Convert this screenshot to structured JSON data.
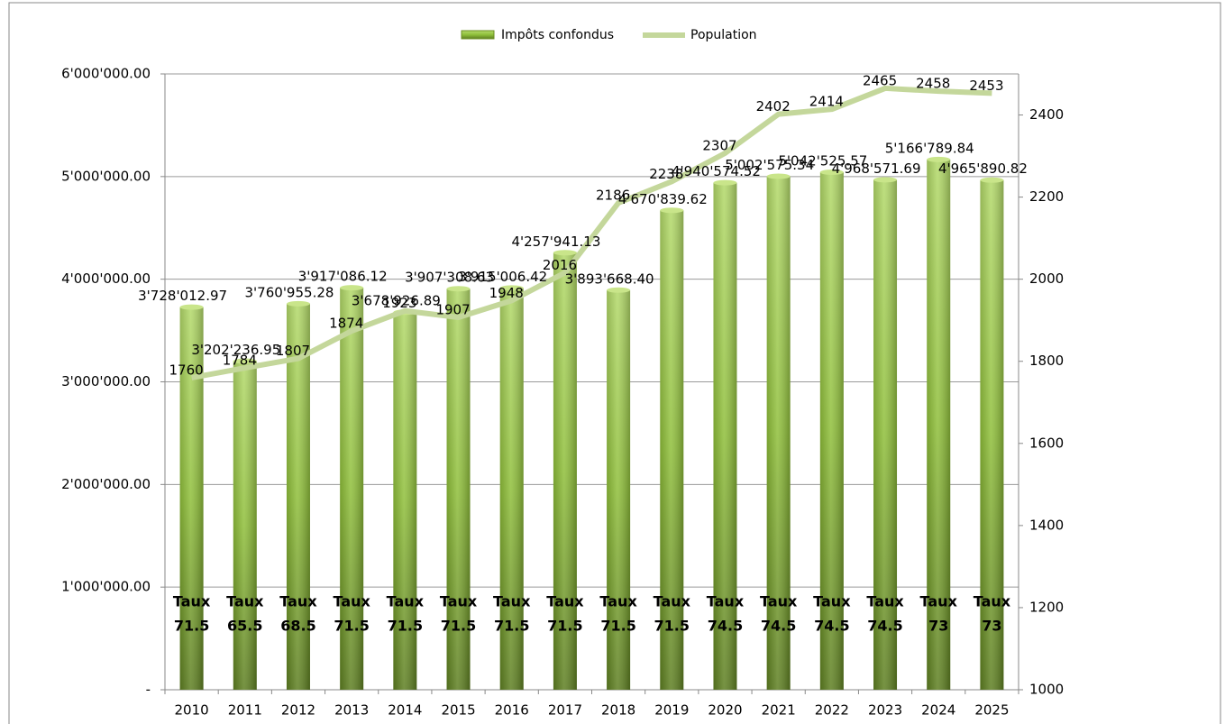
{
  "chart_data": {
    "type": "bar",
    "categories": [
      "2010",
      "2011",
      "2012",
      "2013",
      "2014",
      "2015",
      "2016",
      "2017",
      "2018",
      "2019",
      "2020",
      "2021",
      "2022",
      "2023",
      "2024",
      "2025"
    ],
    "series": [
      {
        "name": "Impôts confondus",
        "type": "bar",
        "color": "#8fbf3a",
        "values": [
          3728012.97,
          3202236.95,
          3760955.28,
          3917086.12,
          3678926.89,
          3907308.63,
          3915006.42,
          4257941.13,
          3893668.4,
          4670839.62,
          4940574.52,
          5002575.34,
          5042525.57,
          4968571.69,
          5166789.84,
          4965890.82
        ],
        "value_labels": [
          "3'728'012.97",
          "3'202'236.95",
          "3'760'955.28",
          "3'917'086.12",
          "3'678'926.89",
          "3'907'308.63",
          "3'915'006.42",
          "4'257'941.13",
          "3'893'668.40",
          "4'670'839.62",
          "4'940'574.52",
          "5'002'575.34",
          "5'042'525.57",
          "4'968'571.69",
          "5'166'789.84",
          "4'965'890.82"
        ]
      },
      {
        "name": "Population",
        "type": "line",
        "axis": "y2",
        "color": "#c4d79b",
        "values": [
          1760,
          1784,
          1807,
          1874,
          1923,
          1907,
          1948,
          2016,
          2186,
          2238,
          2307,
          2402,
          2414,
          2465,
          2458,
          2453
        ]
      }
    ],
    "annotations": {
      "label": "Taux",
      "values": [
        71.5,
        65.5,
        68.5,
        71.5,
        71.5,
        71.5,
        71.5,
        71.5,
        71.5,
        71.5,
        74.5,
        74.5,
        74.5,
        74.5,
        73,
        73
      ]
    },
    "ylim": [
      0,
      6000000
    ],
    "yticks": [
      {
        "value": 0,
        "label": "-"
      },
      {
        "value": 1000000,
        "label": "1'000'000.00"
      },
      {
        "value": 2000000,
        "label": "2'000'000.00"
      },
      {
        "value": 3000000,
        "label": "3'000'000.00"
      },
      {
        "value": 4000000,
        "label": "4'000'000.00"
      },
      {
        "value": 5000000,
        "label": "5'000'000.00"
      },
      {
        "value": 6000000,
        "label": "6'000'000.00"
      }
    ],
    "y2lim": [
      1000,
      2500
    ],
    "y2ticks": [
      1000,
      1200,
      1400,
      1600,
      1800,
      2000,
      2200,
      2400
    ],
    "grid": true,
    "legend": "top"
  }
}
